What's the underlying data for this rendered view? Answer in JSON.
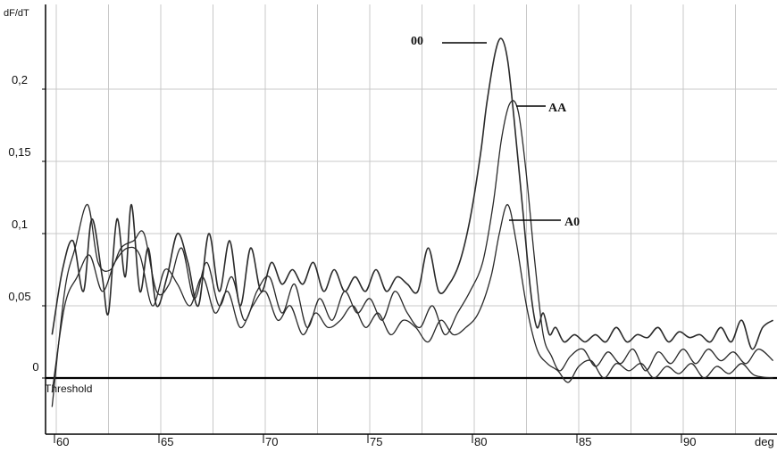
{
  "chart_data": {
    "type": "line",
    "title": "",
    "xlabel": "deg",
    "ylabel": "dF/dT",
    "xlim": [
      59.5,
      94.3
    ],
    "ylim": [
      -0.04,
      0.24
    ],
    "xticks": [
      60,
      65,
      70,
      75,
      80,
      85,
      90
    ],
    "xtick_labels": [
      "60",
      "65",
      "70",
      "75",
      "80",
      "85",
      "90"
    ],
    "yticks": [
      0,
      0.05,
      0.1,
      0.15,
      0.2
    ],
    "ytick_labels": [
      "0",
      "0,05",
      "0,1",
      "0,15",
      "0,2"
    ],
    "grid": true,
    "threshold": {
      "value": 0,
      "label": "Threshold"
    },
    "series": [
      {
        "name": "00",
        "x": [
          59.8,
          60.3,
          60.8,
          61.3,
          61.7,
          62.2,
          62.5,
          62.9,
          63.3,
          63.6,
          64.0,
          64.4,
          64.8,
          65.3,
          65.8,
          66.3,
          66.8,
          67.3,
          67.8,
          68.3,
          68.8,
          69.3,
          69.8,
          70.3,
          70.8,
          71.3,
          71.8,
          72.3,
          72.8,
          73.3,
          73.8,
          74.3,
          74.8,
          75.3,
          75.8,
          76.3,
          76.8,
          77.3,
          77.8,
          78.3,
          78.8,
          79.3,
          79.8,
          80.3,
          80.6,
          81.0,
          81.3,
          81.6,
          81.9,
          82.3,
          82.7,
          83.0,
          83.3,
          83.6,
          83.9,
          84.3,
          84.8,
          85.3,
          85.8,
          86.3,
          86.8,
          87.3,
          87.8,
          88.3,
          88.8,
          89.3,
          89.8,
          90.3,
          90.8,
          91.3,
          91.8,
          92.3,
          92.8,
          93.3,
          93.8,
          94.3
        ],
        "y": [
          0.03,
          0.075,
          0.095,
          0.06,
          0.11,
          0.07,
          0.045,
          0.11,
          0.07,
          0.12,
          0.06,
          0.09,
          0.05,
          0.07,
          0.1,
          0.08,
          0.05,
          0.1,
          0.06,
          0.095,
          0.05,
          0.09,
          0.06,
          0.08,
          0.065,
          0.075,
          0.065,
          0.08,
          0.06,
          0.075,
          0.06,
          0.07,
          0.06,
          0.075,
          0.06,
          0.07,
          0.065,
          0.06,
          0.09,
          0.06,
          0.065,
          0.08,
          0.11,
          0.155,
          0.19,
          0.225,
          0.235,
          0.22,
          0.18,
          0.12,
          0.06,
          0.035,
          0.045,
          0.03,
          0.035,
          0.025,
          0.03,
          0.025,
          0.03,
          0.025,
          0.035,
          0.025,
          0.03,
          0.028,
          0.035,
          0.025,
          0.032,
          0.028,
          0.03,
          0.025,
          0.035,
          0.025,
          0.04,
          0.02,
          0.035,
          0.04
        ]
      },
      {
        "name": "AA",
        "x": [
          59.8,
          60.4,
          60.9,
          61.5,
          62.0,
          62.6,
          63.1,
          63.7,
          64.2,
          64.8,
          65.4,
          66.0,
          66.6,
          67.2,
          67.8,
          68.4,
          69.0,
          69.6,
          70.2,
          70.8,
          71.4,
          72.0,
          72.6,
          73.2,
          73.8,
          74.4,
          75.0,
          75.6,
          76.2,
          76.8,
          77.4,
          78.0,
          78.6,
          79.2,
          79.8,
          80.4,
          80.9,
          81.3,
          81.7,
          82.1,
          82.5,
          82.9,
          83.3,
          83.7,
          84.1,
          84.6,
          85.2,
          85.8,
          86.4,
          87.0,
          87.6,
          88.2,
          88.8,
          89.4,
          90.0,
          90.6,
          91.2,
          91.8,
          92.4,
          93.0,
          93.6,
          94.3
        ],
        "y": [
          -0.02,
          0.06,
          0.09,
          0.12,
          0.08,
          0.075,
          0.09,
          0.095,
          0.1,
          0.06,
          0.065,
          0.09,
          0.055,
          0.08,
          0.05,
          0.07,
          0.04,
          0.06,
          0.07,
          0.045,
          0.065,
          0.035,
          0.055,
          0.04,
          0.06,
          0.045,
          0.055,
          0.04,
          0.06,
          0.045,
          0.035,
          0.05,
          0.03,
          0.045,
          0.06,
          0.08,
          0.12,
          0.165,
          0.19,
          0.185,
          0.14,
          0.08,
          0.03,
          0.015,
          0.005,
          0.015,
          0.02,
          0.008,
          0.018,
          0.01,
          0.02,
          0.005,
          0.018,
          0.01,
          0.02,
          0.01,
          0.02,
          0.012,
          0.018,
          0.01,
          0.02,
          0.012
        ]
      },
      {
        "name": "A0",
        "x": [
          59.8,
          60.4,
          61.0,
          61.6,
          62.2,
          62.8,
          63.4,
          64.0,
          64.6,
          65.2,
          65.8,
          66.4,
          67.0,
          67.6,
          68.2,
          68.8,
          69.4,
          70.0,
          70.6,
          71.2,
          71.8,
          72.4,
          73.0,
          73.6,
          74.2,
          74.8,
          75.4,
          76.0,
          76.6,
          77.2,
          77.8,
          78.4,
          79.0,
          79.6,
          80.2,
          80.8,
          81.2,
          81.6,
          82.0,
          82.5,
          83.0,
          83.5,
          84.0,
          84.5,
          85.0,
          85.6,
          86.2,
          86.8,
          87.4,
          88.0,
          88.6,
          89.2,
          89.8,
          90.4,
          91.0,
          91.6,
          92.2,
          92.8,
          93.4,
          94.3
        ],
        "y": [
          -0.01,
          0.05,
          0.07,
          0.085,
          0.06,
          0.08,
          0.09,
          0.085,
          0.05,
          0.075,
          0.065,
          0.05,
          0.07,
          0.045,
          0.06,
          0.035,
          0.05,
          0.06,
          0.04,
          0.05,
          0.03,
          0.045,
          0.035,
          0.04,
          0.05,
          0.035,
          0.045,
          0.03,
          0.04,
          0.035,
          0.025,
          0.04,
          0.03,
          0.035,
          0.045,
          0.07,
          0.1,
          0.12,
          0.095,
          0.05,
          0.02,
          0.01,
          0.005,
          -0.003,
          0.008,
          0.012,
          0.0,
          0.01,
          0.005,
          0.01,
          0.0,
          0.008,
          0.003,
          0.01,
          0.0,
          0.008,
          0.003,
          0.01,
          0.002,
          0.0
        ]
      }
    ],
    "annotations": [
      {
        "text": "00",
        "series": "00"
      },
      {
        "text": "AA",
        "series": "AA"
      },
      {
        "text": "A0",
        "series": "A0"
      }
    ],
    "colors": {
      "line": "#2a2a2a",
      "grid": "#c8c8c8",
      "axis": "#000000",
      "background": "#ffffff"
    }
  }
}
